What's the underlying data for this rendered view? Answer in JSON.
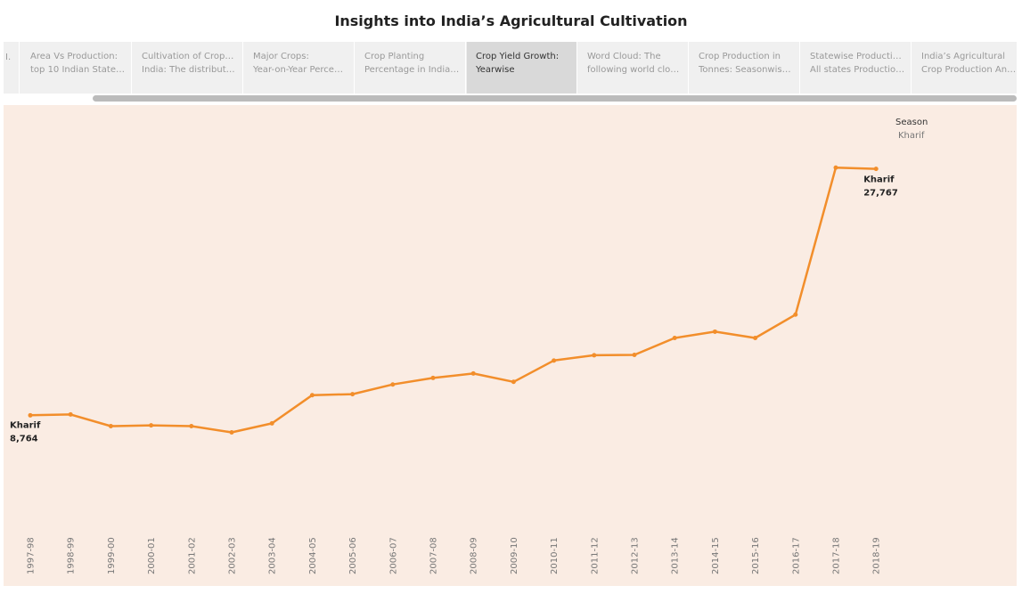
{
  "title": "Insights into India’s Agricultural Cultivation",
  "story_nav": {
    "prev_label": "I.",
    "tabs": [
      {
        "lines": [
          "Area Vs Production:",
          "top 10 Indian States a.."
        ],
        "active": false
      },
      {
        "lines": [
          "Cultivation of Crops in",
          "India: The distributio.."
        ],
        "active": false
      },
      {
        "lines": [
          "Major Crops:",
          "Year-on-Year Percent.."
        ],
        "active": false
      },
      {
        "lines": [
          "Crop Planting",
          "Percentage in India b.."
        ],
        "active": false
      },
      {
        "lines": [
          "Crop Yield Growth:",
          "Yearwise"
        ],
        "active": true
      },
      {
        "lines": [
          "Word Cloud: The",
          "following world cloud.."
        ],
        "active": false
      },
      {
        "lines": [
          "Crop Production in",
          "Tonnes: Seasonwise .."
        ],
        "active": false
      },
      {
        "lines": [
          "Statewise Production:",
          "All states Production .."
        ],
        "active": false
      },
      {
        "lines": [
          "India’s Agricultural",
          "Crop Production Anal.."
        ],
        "active": false
      }
    ]
  },
  "legend": {
    "title": "Season",
    "items": [
      "Kharif"
    ]
  },
  "colors": {
    "line": "#f28e2b",
    "background": "#faece3",
    "tab_active": "#d9d9d9",
    "tab_bar": "#f0f0f0"
  },
  "chart_data": {
    "type": "line",
    "title": "",
    "xlabel": "",
    "ylabel": "",
    "categories": [
      "1997-98",
      "1998-99",
      "1999-00",
      "2000-01",
      "2001-02",
      "2002-03",
      "2003-04",
      "2004-05",
      "2005-06",
      "2006-07",
      "2007-08",
      "2008-09",
      "2009-10",
      "2010-11",
      "2011-12",
      "2012-13",
      "2013-14",
      "2014-15",
      "2015-16",
      "2016-17",
      "2017-18",
      "2018-19"
    ],
    "series": [
      {
        "name": "Kharif",
        "values": [
          8764,
          8828,
          7925,
          7988,
          7925,
          7447,
          8143,
          10317,
          10393,
          11139,
          11646,
          11987,
          11342,
          12986,
          13393,
          13420,
          14724,
          15212,
          14724,
          16527,
          27865,
          27767
        ]
      }
    ],
    "data_labels": [
      {
        "series": "Kharif",
        "text": "Kharif",
        "value_text": "8,764",
        "index": 0
      },
      {
        "series": "Kharif",
        "text": "Kharif",
        "value_text": "27,767",
        "index": 21
      }
    ],
    "ylim": [
      1300,
      32000
    ],
    "y_axis_visible": false,
    "grid": false,
    "legend_position": "top-right"
  }
}
